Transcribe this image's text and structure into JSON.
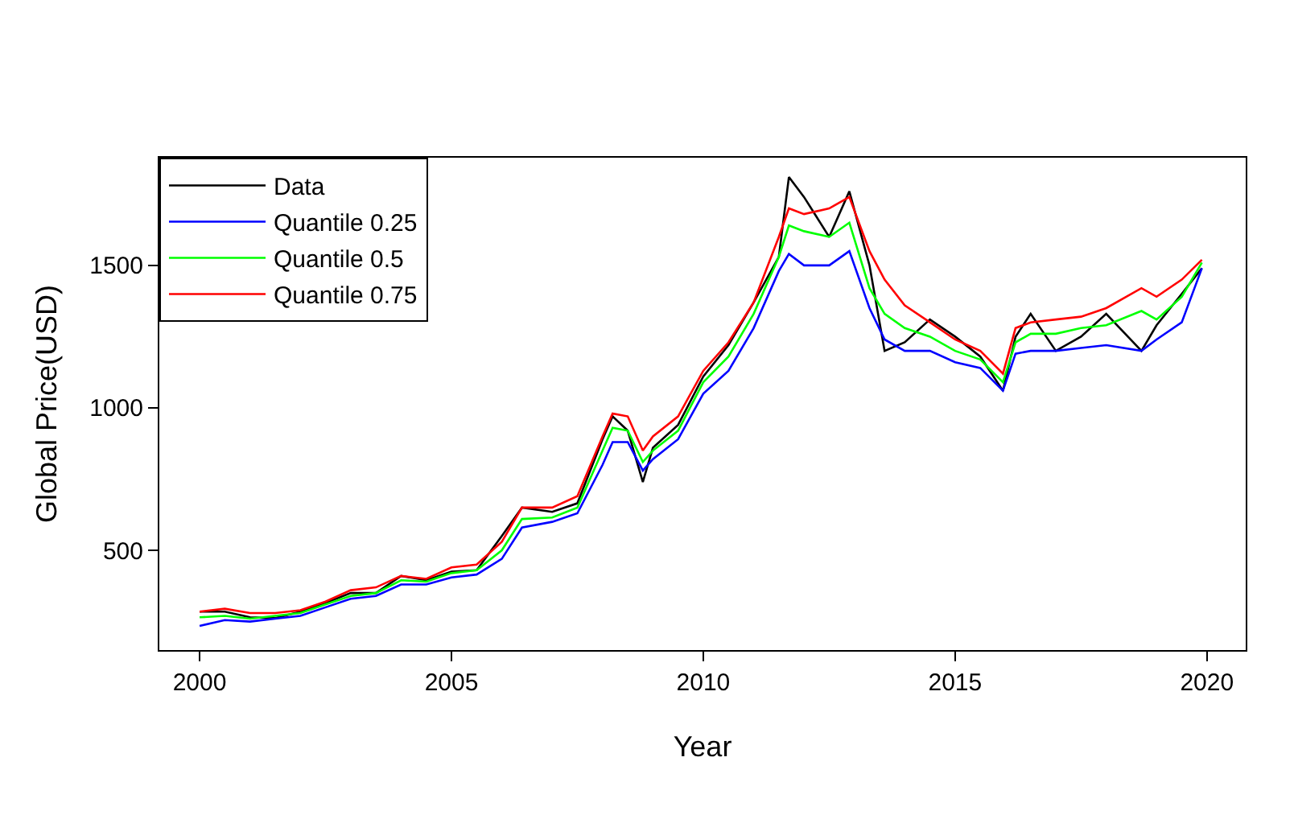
{
  "chart_data": {
    "type": "line",
    "xlabel": "Year",
    "ylabel": "Global Price(USD)",
    "x": [
      2000,
      2000.5,
      2001,
      2001.5,
      2002,
      2002.5,
      2003,
      2003.5,
      2004,
      2004.5,
      2005,
      2005.5,
      2006,
      2006.4,
      2007,
      2007.5,
      2008,
      2008.2,
      2008.5,
      2008.8,
      2009,
      2009.5,
      2010,
      2010.5,
      2011,
      2011.5,
      2011.7,
      2012,
      2012.5,
      2012.9,
      2013.3,
      2013.6,
      2014,
      2014.5,
      2015,
      2015.5,
      2015.95,
      2016.2,
      2016.5,
      2017,
      2017.5,
      2018,
      2018.7,
      2019,
      2019.5,
      2019.9
    ],
    "series": [
      {
        "name": "Data",
        "color": "#000000",
        "values": [
          285,
          285,
          265,
          262,
          285,
          315,
          350,
          350,
          410,
          395,
          425,
          430,
          550,
          650,
          635,
          665,
          890,
          970,
          920,
          740,
          860,
          940,
          1110,
          1220,
          1370,
          1530,
          1810,
          1740,
          1600,
          1760,
          1500,
          1200,
          1230,
          1310,
          1250,
          1180,
          1060,
          1250,
          1330,
          1200,
          1250,
          1330,
          1200,
          1290,
          1400,
          1490
        ]
      },
      {
        "name": "Quantile 0.25",
        "color": "#0000ff",
        "values": [
          235,
          255,
          250,
          260,
          270,
          300,
          330,
          340,
          380,
          380,
          405,
          415,
          470,
          580,
          600,
          630,
          800,
          880,
          880,
          780,
          820,
          890,
          1050,
          1130,
          1280,
          1480,
          1540,
          1500,
          1500,
          1550,
          1350,
          1240,
          1200,
          1200,
          1160,
          1140,
          1060,
          1190,
          1200,
          1200,
          1210,
          1220,
          1200,
          1240,
          1300,
          1490
        ]
      },
      {
        "name": "Quantile 0.5",
        "color": "#00ff00",
        "values": [
          265,
          270,
          260,
          270,
          280,
          310,
          340,
          350,
          395,
          390,
          420,
          430,
          500,
          610,
          615,
          650,
          850,
          930,
          920,
          810,
          850,
          920,
          1090,
          1180,
          1330,
          1530,
          1640,
          1620,
          1600,
          1650,
          1420,
          1330,
          1280,
          1250,
          1200,
          1170,
          1090,
          1230,
          1260,
          1260,
          1280,
          1290,
          1340,
          1310,
          1390,
          1510
        ]
      },
      {
        "name": "Quantile 0.75",
        "color": "#ff0000",
        "values": [
          285,
          295,
          280,
          280,
          290,
          320,
          360,
          370,
          410,
          400,
          440,
          450,
          530,
          650,
          650,
          690,
          900,
          980,
          970,
          850,
          900,
          970,
          1130,
          1230,
          1370,
          1600,
          1700,
          1680,
          1700,
          1740,
          1550,
          1450,
          1360,
          1300,
          1240,
          1200,
          1120,
          1280,
          1300,
          1310,
          1320,
          1350,
          1420,
          1390,
          1450,
          1520
        ]
      }
    ],
    "xlim": [
      1999.2,
      2020.77
    ],
    "xticks": [
      2000,
      2005,
      2010,
      2015,
      2020
    ],
    "ylim": [
      150,
      1878
    ],
    "yticks": [
      500,
      1000,
      1500
    ],
    "grid": false,
    "legend": "top left",
    "marker": "none",
    "line_style": "solid"
  }
}
